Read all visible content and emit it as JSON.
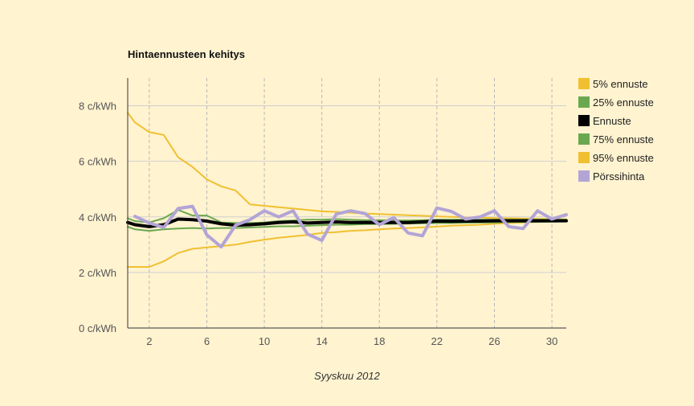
{
  "chart_data": {
    "type": "line",
    "title": "Hintaennusteen kehitys",
    "xlabel": "Syyskuu 2012",
    "ylabel": "",
    "xlim": [
      0.5,
      31
    ],
    "ylim": [
      0,
      9
    ],
    "x_ticks": [
      2,
      6,
      10,
      14,
      18,
      22,
      26,
      30
    ],
    "y_ticks": [
      {
        "value": 0,
        "label": "0 c/kWh"
      },
      {
        "value": 2,
        "label": "2 c/kWh"
      },
      {
        "value": 4,
        "label": "4 c/kWh"
      },
      {
        "value": 6,
        "label": "6 c/kWh"
      },
      {
        "value": 8,
        "label": "8 c/kWh"
      }
    ],
    "grid": true,
    "legend_position": "right",
    "x": [
      0.5,
      1,
      2,
      3,
      4,
      5,
      6,
      7,
      8,
      9,
      10,
      11,
      12,
      13,
      14,
      15,
      16,
      17,
      18,
      19,
      20,
      21,
      22,
      23,
      24,
      25,
      26,
      27,
      28,
      29,
      30,
      31
    ],
    "series": [
      {
        "name": "95% ennuste",
        "color": "#f0c030",
        "width": 2,
        "values": [
          7.75,
          7.4,
          7.05,
          6.95,
          6.15,
          5.8,
          5.35,
          5.1,
          4.95,
          4.45,
          4.4,
          4.35,
          4.3,
          4.25,
          4.2,
          4.18,
          4.15,
          4.12,
          4.1,
          4.08,
          4.06,
          4.04,
          4.02,
          4.0,
          3.98,
          3.97,
          3.96,
          3.95,
          3.94,
          3.93,
          3.92,
          3.91
        ]
      },
      {
        "name": "5% ennuste",
        "color": "#f0c030",
        "width": 2,
        "values": [
          2.2,
          2.2,
          2.2,
          2.4,
          2.7,
          2.85,
          2.9,
          2.95,
          3.0,
          3.1,
          3.18,
          3.25,
          3.3,
          3.35,
          3.42,
          3.45,
          3.5,
          3.52,
          3.55,
          3.58,
          3.6,
          3.62,
          3.65,
          3.68,
          3.7,
          3.72,
          3.75,
          3.78,
          3.8,
          3.82,
          3.84,
          3.86
        ]
      },
      {
        "name": "75% ennuste",
        "color": "#6aa84f",
        "width": 2,
        "values": [
          3.95,
          3.85,
          3.8,
          3.95,
          4.25,
          4.05,
          4.05,
          3.8,
          3.78,
          3.78,
          3.8,
          3.85,
          3.87,
          3.9,
          3.9,
          3.92,
          3.9,
          3.88,
          3.88,
          3.87,
          3.87,
          3.88,
          3.9,
          3.9,
          3.9,
          3.9,
          3.9,
          3.9,
          3.9,
          3.9,
          3.9,
          3.9
        ]
      },
      {
        "name": "25% ennuste",
        "color": "#6aa84f",
        "width": 2,
        "values": [
          3.65,
          3.55,
          3.5,
          3.55,
          3.58,
          3.6,
          3.58,
          3.6,
          3.6,
          3.62,
          3.64,
          3.66,
          3.66,
          3.68,
          3.7,
          3.72,
          3.72,
          3.74,
          3.74,
          3.75,
          3.76,
          3.77,
          3.78,
          3.78,
          3.79,
          3.8,
          3.8,
          3.81,
          3.82,
          3.82,
          3.83,
          3.84
        ]
      },
      {
        "name": "Ennuste",
        "color": "#000000",
        "width": 4,
        "values": [
          3.8,
          3.72,
          3.65,
          3.72,
          3.92,
          3.9,
          3.85,
          3.75,
          3.7,
          3.72,
          3.75,
          3.8,
          3.82,
          3.78,
          3.8,
          3.82,
          3.8,
          3.8,
          3.8,
          3.8,
          3.8,
          3.82,
          3.85,
          3.84,
          3.85,
          3.85,
          3.86,
          3.86,
          3.86,
          3.86,
          3.86,
          3.86
        ]
      },
      {
        "name": "Pörssihinta",
        "color": "#b3a4d6",
        "width": 4,
        "values": [
          null,
          4.02,
          3.78,
          3.62,
          4.3,
          4.38,
          3.35,
          2.92,
          3.7,
          3.9,
          4.22,
          4.0,
          4.22,
          3.38,
          3.15,
          4.1,
          4.22,
          4.12,
          3.72,
          3.98,
          3.42,
          3.32,
          4.32,
          4.2,
          3.92,
          4.0,
          4.22,
          3.65,
          3.58,
          4.22,
          3.92,
          4.08
        ]
      }
    ],
    "legend": [
      {
        "label": "5% ennuste",
        "color": "#f0c030"
      },
      {
        "label": "25% ennuste",
        "color": "#6aa84f"
      },
      {
        "label": "Ennuste",
        "color": "#000000"
      },
      {
        "label": "75% ennuste",
        "color": "#6aa84f"
      },
      {
        "label": "95% ennuste",
        "color": "#f0c030"
      },
      {
        "label": "Pörssihinta",
        "color": "#b3a4d6"
      }
    ]
  }
}
